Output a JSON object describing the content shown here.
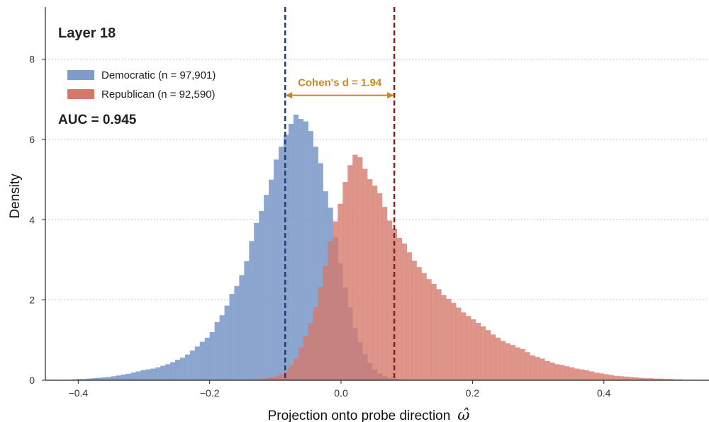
{
  "chart_data": {
    "type": "histogram",
    "title": "Layer 18",
    "xlabel": "Projection onto probe direction",
    "xlabel_symbol": "ω̂",
    "ylabel": "Density",
    "xlim": [
      -0.45,
      0.56
    ],
    "ylim": [
      0,
      9.3
    ],
    "xticks": [
      -0.4,
      -0.2,
      0.0,
      0.2,
      0.4
    ],
    "xtick_labels": [
      "−0.4",
      "−0.2",
      "0.0",
      "0.2",
      "0.4"
    ],
    "yticks": [
      0,
      2,
      4,
      6,
      8
    ],
    "ytick_labels": [
      "0",
      "2",
      "4",
      "6",
      "8"
    ],
    "grid": "horizontal dotted",
    "legend_position": "top-left",
    "auc_text": "AUC = 0.945",
    "annotation": {
      "text": "Cohen's d = 1.94",
      "color": "#c8891f",
      "from_x": -0.085,
      "to_x": 0.081,
      "y": 7.1
    },
    "series": [
      {
        "name": "Democratic",
        "legend_label": "Democratic  (n = 97,901)",
        "color": "#7f9cca",
        "mean_line_x": -0.085,
        "mean_line_color": "#1f3f7a",
        "bin_width": 0.0075,
        "bins": [
          [
            -0.41,
            0.02
          ],
          [
            -0.4025,
            0.03
          ],
          [
            -0.395,
            0.03
          ],
          [
            -0.3875,
            0.04
          ],
          [
            -0.38,
            0.05
          ],
          [
            -0.3725,
            0.06
          ],
          [
            -0.365,
            0.07
          ],
          [
            -0.3575,
            0.08
          ],
          [
            -0.35,
            0.1
          ],
          [
            -0.3425,
            0.12
          ],
          [
            -0.335,
            0.14
          ],
          [
            -0.3275,
            0.16
          ],
          [
            -0.32,
            0.19
          ],
          [
            -0.3125,
            0.22
          ],
          [
            -0.305,
            0.25
          ],
          [
            -0.2975,
            0.27
          ],
          [
            -0.29,
            0.29
          ],
          [
            -0.2825,
            0.32
          ],
          [
            -0.275,
            0.36
          ],
          [
            -0.2675,
            0.4
          ],
          [
            -0.26,
            0.45
          ],
          [
            -0.2525,
            0.51
          ],
          [
            -0.245,
            0.56
          ],
          [
            -0.2375,
            0.64
          ],
          [
            -0.23,
            0.74
          ],
          [
            -0.2225,
            0.84
          ],
          [
            -0.215,
            0.96
          ],
          [
            -0.2075,
            1.06
          ],
          [
            -0.2,
            1.2
          ],
          [
            -0.1925,
            1.45
          ],
          [
            -0.185,
            1.62
          ],
          [
            -0.1775,
            1.86
          ],
          [
            -0.17,
            2.15
          ],
          [
            -0.1625,
            2.35
          ],
          [
            -0.155,
            2.62
          ],
          [
            -0.1475,
            2.97
          ],
          [
            -0.14,
            3.47
          ],
          [
            -0.1325,
            3.92
          ],
          [
            -0.125,
            4.22
          ],
          [
            -0.1175,
            4.62
          ],
          [
            -0.11,
            5.0
          ],
          [
            -0.1025,
            5.5
          ],
          [
            -0.095,
            5.82
          ],
          [
            -0.0875,
            6.12
          ],
          [
            -0.08,
            6.39
          ],
          [
            -0.0725,
            6.62
          ],
          [
            -0.065,
            6.51
          ],
          [
            -0.0575,
            6.45
          ],
          [
            -0.05,
            6.21
          ],
          [
            -0.0425,
            5.82
          ],
          [
            -0.035,
            5.41
          ],
          [
            -0.0275,
            4.71
          ],
          [
            -0.02,
            4.3
          ],
          [
            -0.0125,
            3.56
          ],
          [
            -0.005,
            2.92
          ],
          [
            0.0025,
            2.32
          ],
          [
            0.01,
            1.81
          ],
          [
            0.0175,
            1.3
          ],
          [
            0.025,
            0.95
          ],
          [
            0.0325,
            0.65
          ],
          [
            0.04,
            0.43
          ],
          [
            0.0475,
            0.27
          ],
          [
            0.055,
            0.17
          ],
          [
            0.0625,
            0.1
          ],
          [
            0.07,
            0.06
          ],
          [
            0.0775,
            0.04
          ],
          [
            0.085,
            0.02
          ],
          [
            0.0925,
            0.02
          ],
          [
            0.1,
            0.01
          ]
        ]
      },
      {
        "name": "Republican",
        "legend_label": "Republican  (n = 92,590)",
        "color": "#d5786a",
        "mean_line_x": 0.081,
        "mean_line_color": "#8b1d1a",
        "bin_width": 0.0075,
        "bins": [
          [
            -0.14,
            0.01
          ],
          [
            -0.1325,
            0.02
          ],
          [
            -0.125,
            0.03
          ],
          [
            -0.1175,
            0.05
          ],
          [
            -0.11,
            0.07
          ],
          [
            -0.1025,
            0.1
          ],
          [
            -0.095,
            0.14
          ],
          [
            -0.0875,
            0.22
          ],
          [
            -0.08,
            0.38
          ],
          [
            -0.0725,
            0.55
          ],
          [
            -0.065,
            0.82
          ],
          [
            -0.0575,
            1.1
          ],
          [
            -0.05,
            1.42
          ],
          [
            -0.0425,
            1.82
          ],
          [
            -0.035,
            2.32
          ],
          [
            -0.0275,
            2.85
          ],
          [
            -0.02,
            3.46
          ],
          [
            -0.0125,
            3.96
          ],
          [
            -0.005,
            4.4
          ],
          [
            0.0025,
            4.94
          ],
          [
            0.01,
            5.36
          ],
          [
            0.0175,
            5.62
          ],
          [
            0.025,
            5.56
          ],
          [
            0.0325,
            5.27
          ],
          [
            0.04,
            5.01
          ],
          [
            0.0475,
            4.85
          ],
          [
            0.055,
            4.66
          ],
          [
            0.0625,
            4.32
          ],
          [
            0.07,
            3.98
          ],
          [
            0.0775,
            3.78
          ],
          [
            0.085,
            3.55
          ],
          [
            0.0925,
            3.41
          ],
          [
            0.1,
            3.19
          ],
          [
            0.1075,
            2.98
          ],
          [
            0.115,
            2.82
          ],
          [
            0.1225,
            2.67
          ],
          [
            0.13,
            2.52
          ],
          [
            0.1375,
            2.4
          ],
          [
            0.145,
            2.27
          ],
          [
            0.1525,
            2.12
          ],
          [
            0.16,
            2.03
          ],
          [
            0.1675,
            1.93
          ],
          [
            0.175,
            1.81
          ],
          [
            0.1825,
            1.69
          ],
          [
            0.19,
            1.6
          ],
          [
            0.1975,
            1.52
          ],
          [
            0.205,
            1.43
          ],
          [
            0.2125,
            1.34
          ],
          [
            0.22,
            1.25
          ],
          [
            0.2275,
            1.14
          ],
          [
            0.235,
            1.06
          ],
          [
            0.2425,
            0.98
          ],
          [
            0.25,
            0.92
          ],
          [
            0.2575,
            0.88
          ],
          [
            0.265,
            0.82
          ],
          [
            0.2725,
            0.78
          ],
          [
            0.28,
            0.7
          ],
          [
            0.2875,
            0.62
          ],
          [
            0.295,
            0.58
          ],
          [
            0.3025,
            0.54
          ],
          [
            0.31,
            0.48
          ],
          [
            0.3175,
            0.44
          ],
          [
            0.325,
            0.4
          ],
          [
            0.3325,
            0.38
          ],
          [
            0.34,
            0.35
          ],
          [
            0.3475,
            0.32
          ],
          [
            0.355,
            0.29
          ],
          [
            0.3625,
            0.27
          ],
          [
            0.37,
            0.25
          ],
          [
            0.3775,
            0.22
          ],
          [
            0.385,
            0.19
          ],
          [
            0.3925,
            0.17
          ],
          [
            0.4,
            0.15
          ],
          [
            0.4075,
            0.13
          ],
          [
            0.415,
            0.11
          ],
          [
            0.4225,
            0.1
          ],
          [
            0.43,
            0.09
          ],
          [
            0.4375,
            0.08
          ],
          [
            0.445,
            0.07
          ],
          [
            0.4525,
            0.06
          ],
          [
            0.46,
            0.05
          ],
          [
            0.4675,
            0.05
          ],
          [
            0.475,
            0.04
          ],
          [
            0.4825,
            0.04
          ],
          [
            0.49,
            0.03
          ],
          [
            0.4975,
            0.03
          ],
          [
            0.505,
            0.02
          ],
          [
            0.5125,
            0.02
          ],
          [
            0.52,
            0.01
          ]
        ]
      }
    ]
  }
}
